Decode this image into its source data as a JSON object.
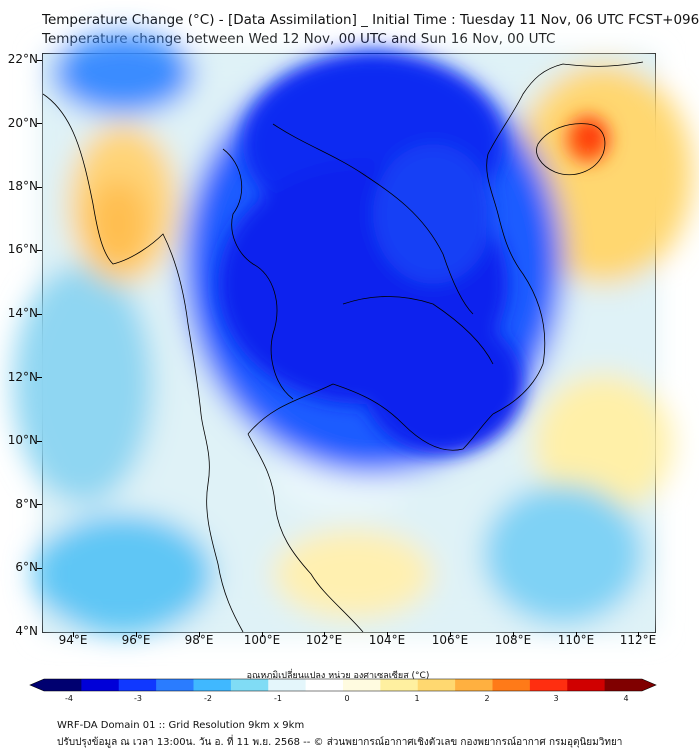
{
  "titles": {
    "line1": "Temperature Change (°C) - [Data Assimilation] _ Initial Time : Tuesday 11 Nov, 06 UTC FCST+096",
    "line2": "Temperature change between Wed 12 Nov, 00 UTC and Sun 16 Nov, 00 UTC"
  },
  "axes": {
    "lat_labels": [
      "22°N",
      "20°N",
      "18°N",
      "16°N",
      "14°N",
      "12°N",
      "10°N",
      "8°N",
      "6°N",
      "4°N"
    ],
    "lon_labels": [
      "94°E",
      "96°E",
      "98°E",
      "100°E",
      "102°E",
      "104°E",
      "106°E",
      "108°E",
      "110°E",
      "112°E"
    ],
    "lat_range": [
      4,
      22.3
    ],
    "lon_range": [
      93,
      112.5
    ]
  },
  "colorbar": {
    "label": "อุณหภูมิเปลี่ยนแปลง หน่วย องศาเซลเซียส (°C)",
    "ticks": [
      "-4",
      "-3",
      "-2",
      "-1",
      "0",
      "1",
      "2",
      "3",
      "4"
    ],
    "range": [
      -4,
      4
    ],
    "colors": [
      "#000070",
      "#0000d8",
      "#1038ff",
      "#2a7cff",
      "#40b8ff",
      "#80dcf5",
      "#e4f6fb",
      "#ffffff",
      "#fffbe0",
      "#fff0a0",
      "#ffd870",
      "#ffb040",
      "#ff7a18",
      "#ff2e10",
      "#d00000",
      "#800000"
    ]
  },
  "map_colors": {
    "background": "#dff2f7",
    "strong_cooling": "#0a22f0",
    "cooling": "#2a72ff",
    "mild_cooling": "#4fc0f5",
    "slight_cooling": "#a6e0f5",
    "slight_warming": "#fff3b0",
    "warming": "#ffd070",
    "strong_warming": "#ff8a20",
    "max_warming": "#ff3a10",
    "coastline": "#000000"
  },
  "footer": {
    "line1": "WRF-DA Domain 01 :: Grid Resolution 9km x 9km",
    "line2": "ปรับปรุงข้อมูล ณ เวลา 13:00น. วัน อ. ที่ 11 พ.ย. 2568 -- © ส่วนพยากรณ์อากาศเชิงตัวเลข กองพยากรณ์อากาศ กรมอุตุนิยมวิทยา"
  }
}
